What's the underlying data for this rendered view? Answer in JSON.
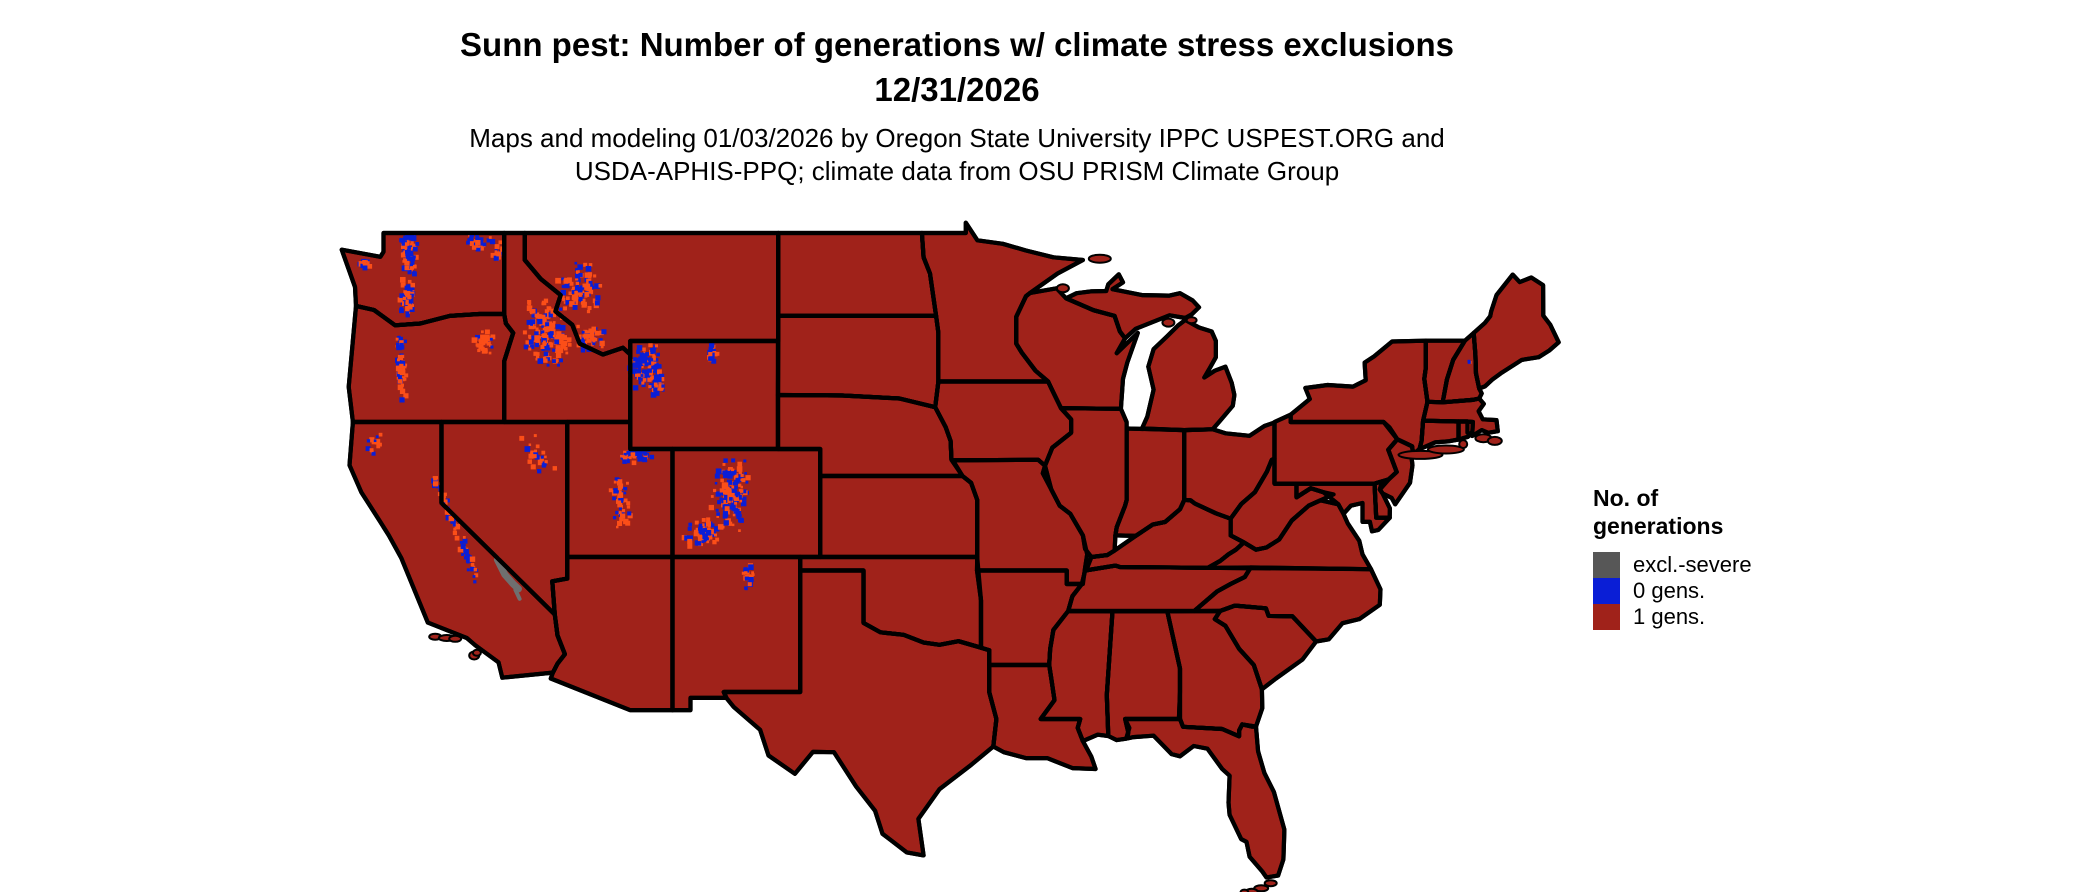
{
  "title": {
    "line1": "Sunn pest: Number of generations w/ climate stress exclusions",
    "line2": "12/31/2026"
  },
  "subtitle": {
    "line1": "Maps and modeling 01/03/2026 by Oregon State University IPPC USPEST.ORG and",
    "line2": "USDA-APHIS-PPQ; climate data from OSU PRISM Climate Group"
  },
  "legend": {
    "title_line1": "No. of",
    "title_line2": "generations",
    "items": [
      {
        "label": "excl.-severe",
        "color": "#575757"
      },
      {
        "label": "0 gens.",
        "color": "#0a1ed6"
      },
      {
        "label": "1 gens.",
        "color": "#a0221a"
      }
    ]
  },
  "map": {
    "region": "Contiguous United States",
    "dominant_class": "1 gens.",
    "colors": {
      "background": "#ffffff",
      "state_border": "#000000",
      "gens_1_fill": "#a0221a",
      "gens_0_fill": "#0a1ed6",
      "excl_severe_fill": "#6f6f6f",
      "stress_speckle": "#fb4e18"
    }
  }
}
